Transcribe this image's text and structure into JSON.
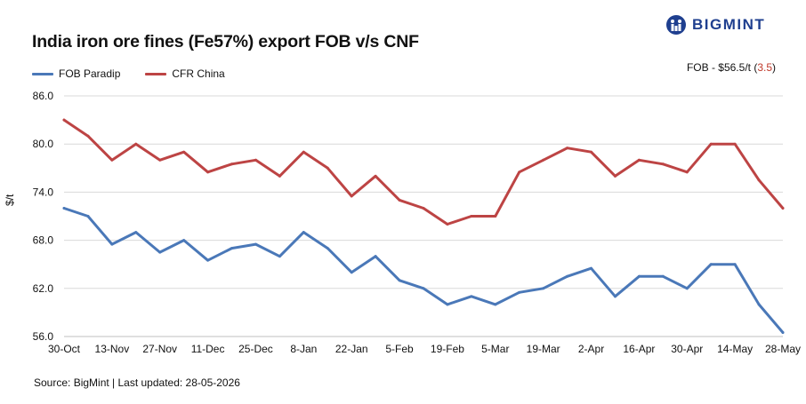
{
  "header": {
    "title": "India iron ore fines (Fe57%) export FOB v/s CNF",
    "brand": "BIGMINT",
    "note_prefix": "FOB - $56.5/t (",
    "note_change": "3.5",
    "note_suffix": ")",
    "source": "Source: BigMint | Last updated: 28-05-2026"
  },
  "colors": {
    "fob": "#4a78b8",
    "cfr": "#bd4444",
    "grid": "#d9d9d9",
    "brand": "#1f3f8f",
    "negative": "#c0392b"
  },
  "chart_data": {
    "type": "line",
    "title": "India iron ore fines (Fe57%) export FOB v/s CNF",
    "xlabel": "",
    "ylabel": "$/t",
    "ylim": [
      56,
      86
    ],
    "yticks": [
      "56.0",
      "62.0",
      "68.0",
      "74.0",
      "80.0",
      "86.0"
    ],
    "ytick_values": [
      56,
      62,
      68,
      74,
      80,
      86
    ],
    "grid": true,
    "legend": "top-left",
    "categories": [
      "30-Oct",
      "6-Nov",
      "13-Nov",
      "20-Nov",
      "27-Nov",
      "4-Dec",
      "11-Dec",
      "18-Dec",
      "25-Dec",
      "1-Jan",
      "8-Jan",
      "15-Jan",
      "22-Jan",
      "29-Jan",
      "5-Feb",
      "12-Feb",
      "19-Feb",
      "26-Feb",
      "5-Mar",
      "12-Mar",
      "19-Mar",
      "26-Mar",
      "2-Apr",
      "9-Apr",
      "16-Apr",
      "23-Apr",
      "30-Apr",
      "7-May",
      "14-May",
      "21-May",
      "28-May"
    ],
    "x_tick_labels": [
      "30-Oct",
      "13-Nov",
      "27-Nov",
      "11-Dec",
      "25-Dec",
      "8-Jan",
      "22-Jan",
      "5-Feb",
      "19-Feb",
      "5-Mar",
      "19-Mar",
      "2-Apr",
      "16-Apr",
      "30-Apr",
      "14-May",
      "28-May"
    ],
    "series": [
      {
        "name": "FOB Paradip",
        "color": "#4a78b8",
        "values": [
          72.0,
          71.0,
          67.5,
          69.0,
          66.5,
          68.0,
          65.5,
          67.0,
          67.5,
          66.0,
          69.0,
          67.0,
          64.0,
          66.0,
          63.0,
          62.0,
          60.0,
          61.0,
          60.0,
          61.5,
          62.0,
          63.5,
          64.5,
          61.0,
          63.5,
          63.5,
          62.0,
          65.0,
          65.0,
          60.0,
          56.5
        ]
      },
      {
        "name": "CFR China",
        "color": "#bd4444",
        "values": [
          83.0,
          81.0,
          78.0,
          80.0,
          78.0,
          79.0,
          76.5,
          77.5,
          78.0,
          76.0,
          79.0,
          77.0,
          73.5,
          76.0,
          73.0,
          72.0,
          70.0,
          71.0,
          71.0,
          76.5,
          78.0,
          79.5,
          79.0,
          76.0,
          78.0,
          77.5,
          76.5,
          80.0,
          80.0,
          75.5,
          72.0
        ]
      }
    ]
  }
}
